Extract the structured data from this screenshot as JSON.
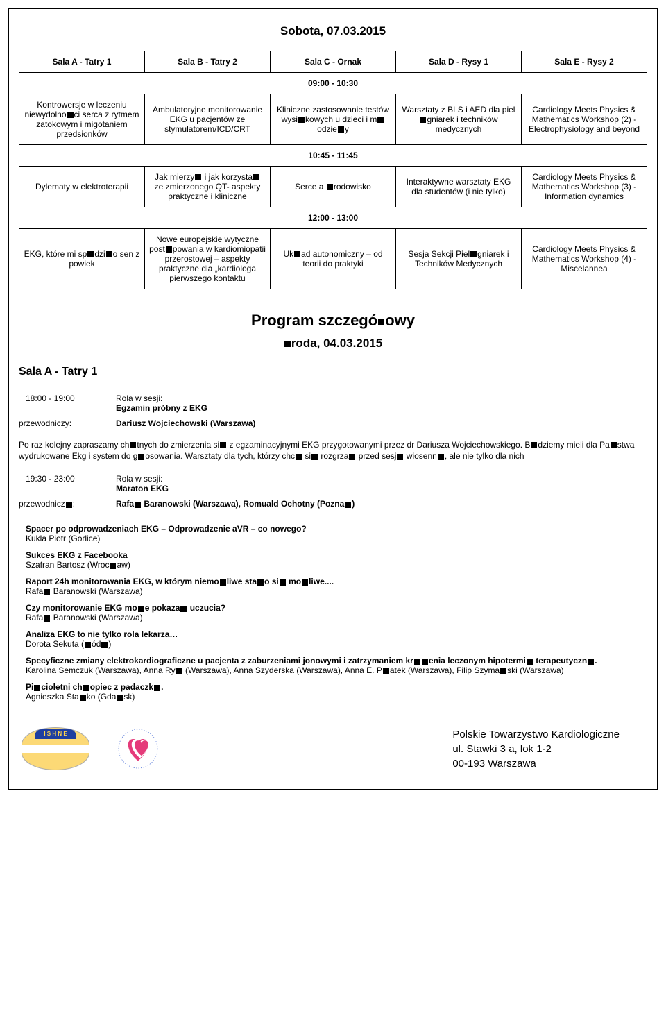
{
  "title": "Sobota, 07.03.2015",
  "columns": [
    "Sala A - Tatry 1",
    "Sala B - Tatry 2",
    "Sala C - Ornak",
    "Sala D - Rysy 1",
    "Sala E - Rysy 2"
  ],
  "timeslots": [
    {
      "time": "09:00 - 10:30",
      "cells": [
        "Kontrowersje w leczeniu niewydolno■ci serca z rytmem zatokowym i migotaniem przedsionków",
        "Ambulatoryjne monitorowanie EKG u pacjentów ze stymulatorem/ICD/CRT",
        "Kliniczne zastosowanie testów wysi■kowych u dzieci i m■odzie■y",
        "Warsztaty z BLS i AED dla piel■gniarek i techników medycznych",
        "Cardiology Meets Physics & Mathematics Workshop (2) - Electrophysiology and beyond"
      ]
    },
    {
      "time": "10:45 - 11:45",
      "cells": [
        "Dylematy w elektroterapii",
        "Jak mierzy■ i jak korzysta■ ze zmierzonego QT- aspekty praktyczne i kliniczne",
        "Serce a ■rodowisko",
        "Interaktywne warsztaty EKG dla studentów (i nie tylko)",
        "Cardiology Meets Physics & Mathematics Workshop (3) - Information dynamics"
      ]
    },
    {
      "time": "12:00 - 13:00",
      "cells": [
        "EKG, które mi sp■dzi■o sen z powiek",
        "Nowe europejskie wytyczne post■powania w kardiomiopatii przerostowej – aspekty praktyczne dla „kardiologa pierwszego kontaktu",
        "Uk■ad autonomiczny – od teorii do praktyki",
        "Sesja Sekcji Piel■gniarek i Techników Medycznych",
        "Cardiology Meets Physics & Mathematics Workshop (4) - Miscelannea"
      ]
    }
  ],
  "program_heading": "Program szczegó■owy",
  "program_day": "■roda, 04.03.2015",
  "room_heading": "Sala A - Tatry 1",
  "sessions": [
    {
      "time": "18:00 - 19:00",
      "role_label": "Rola w sesji:",
      "title": "Egzamin próbny z EKG",
      "chair_label": "przewodniczy:",
      "chair": "Dariusz Wojciechowski (Warszawa)",
      "desc": "Po raz kolejny zapraszamy ch■tnych do zmierzenia si■ z egzaminacyjnymi EKG przygotowanymi przez dr Dariusza Wojciechowskiego. B■dziemy mieli dla Pa■stwa wydrukowane Ekg i system do g■osowania. Warsztaty dla tych, którzy chc■ si■ rozgrza■ przed sesj■ wiosenn■, ale nie tylko dla nich"
    },
    {
      "time": "19:30 - 23:00",
      "role_label": "Rola w sesji:",
      "title": "Maraton EKG",
      "chair_label": "przewodnicz■:",
      "chair": "Rafa■ Baranowski (Warszawa), Romuald Ochotny (Pozna■)",
      "desc": ""
    }
  ],
  "talks": [
    {
      "t": "Spacer po odprowadzeniach EKG – Odprowadzenie aVR – co nowego?",
      "a": "Kukla Piotr (Gorlice)"
    },
    {
      "t": "Sukces EKG z Facebooka",
      "a": "Szafran Bartosz (Wroc■aw)"
    },
    {
      "t": "Raport 24h monitorowania EKG, w którym niemo■liwe sta■o si■ mo■liwe....",
      "a": "Rafa■ Baranowski (Warszawa)"
    },
    {
      "t": "Czy monitorowanie EKG mo■e pokaza■ uczucia?",
      "a": "Rafa■ Baranowski (Warszawa)"
    },
    {
      "t": "Analiza EKG to nie tylko rola lekarza…",
      "a": "Dorota Sekuta (■ód■)"
    },
    {
      "t": "Specyficzne zmiany elektrokardiograficzne u pacjenta z zaburzeniami jonowymi i zatrzymaniem kr■■enia leczonym hipotermi■ terapeutyczn■.",
      "a": "Karolina Semczuk (Warszawa), Anna Ry■ (Warszawa), Anna Szyderska (Warszawa), Anna E. P■atek (Warszawa), Filip Szyma■ski (Warszawa)"
    },
    {
      "t": "Pi■cioletni ch■opiec z padaczk■.",
      "a": "Agnieszka Sta■ko (Gda■sk)"
    }
  ],
  "footer": {
    "org": "Polskie Towarzystwo Kardiologiczne",
    "line2": "ul. Stawki 3 a, lok 1-2",
    "line3": "00-193 Warszawa",
    "ishne_label": "I S H N E"
  }
}
